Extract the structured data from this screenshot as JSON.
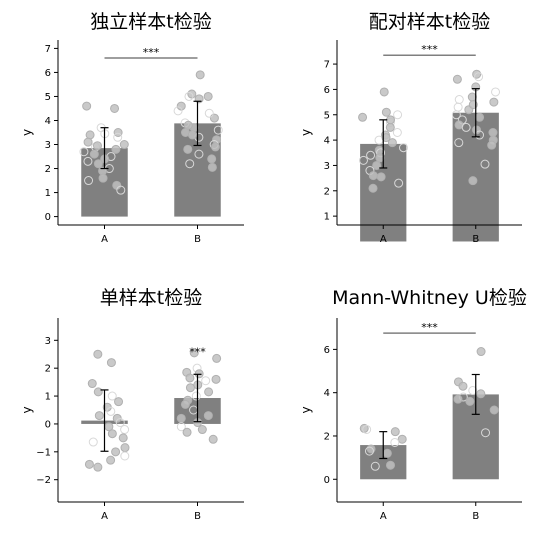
{
  "chart_data": [
    {
      "type": "bar",
      "title": "独立样本t检验",
      "xlabel": "",
      "ylabel": "y",
      "categories": [
        "A",
        "B"
      ],
      "values": [
        2.85,
        3.88
      ],
      "errors": [
        0.85,
        0.92
      ],
      "ylim": [
        -0.35,
        7.35
      ],
      "yticks": [
        0,
        1,
        2,
        3,
        4,
        5,
        6,
        7
      ],
      "significance": {
        "text": "***",
        "from": "A",
        "to": "B",
        "y": 6.6
      },
      "grid": false,
      "points": {
        "A": [
          {
            "y": 4.5,
            "filled": true
          },
          {
            "y": 4.6,
            "filled": true
          },
          {
            "y": 3.7,
            "filled": false
          },
          {
            "y": 3.5,
            "filled": true
          },
          {
            "y": 3.4,
            "filled": true
          },
          {
            "y": 3.3,
            "filled": false
          },
          {
            "y": 3.1,
            "filled": true
          },
          {
            "y": 3.0,
            "filled": true
          },
          {
            "y": 2.9,
            "filled": false
          },
          {
            "y": 2.8,
            "filled": true
          },
          {
            "y": 2.7,
            "filled": false
          },
          {
            "y": 2.6,
            "filled": true
          },
          {
            "y": 2.5,
            "filled": false
          },
          {
            "y": 2.4,
            "filled": true
          },
          {
            "y": 2.3,
            "filled": false
          },
          {
            "y": 2.2,
            "filled": true
          },
          {
            "y": 2.0,
            "filled": false
          },
          {
            "y": 1.9,
            "filled": true
          },
          {
            "y": 1.6,
            "filled": true
          },
          {
            "y": 1.5,
            "filled": false
          },
          {
            "y": 1.3,
            "filled": true
          },
          {
            "y": 1.1,
            "filled": false
          },
          {
            "y": 2.95,
            "filled": true
          },
          {
            "y": 3.45,
            "filled": false
          }
        ],
        "B": [
          {
            "y": 5.9,
            "filled": true
          },
          {
            "y": 5.1,
            "filled": true
          },
          {
            "y": 5.0,
            "filled": false
          },
          {
            "y": 4.9,
            "filled": true
          },
          {
            "y": 4.6,
            "filled": true
          },
          {
            "y": 4.4,
            "filled": false
          },
          {
            "y": 4.1,
            "filled": true
          },
          {
            "y": 3.9,
            "filled": false
          },
          {
            "y": 3.7,
            "filled": true
          },
          {
            "y": 3.6,
            "filled": false
          },
          {
            "y": 3.5,
            "filled": true
          },
          {
            "y": 3.3,
            "filled": false
          },
          {
            "y": 3.2,
            "filled": true
          },
          {
            "y": 3.0,
            "filled": false
          },
          {
            "y": 2.8,
            "filled": true
          },
          {
            "y": 2.6,
            "filled": false
          },
          {
            "y": 2.4,
            "filled": true
          },
          {
            "y": 2.2,
            "filled": false
          },
          {
            "y": 2.05,
            "filled": true
          },
          {
            "y": 3.8,
            "filled": true
          },
          {
            "y": 4.3,
            "filled": false
          },
          {
            "y": 3.4,
            "filled": true
          },
          {
            "y": 5.0,
            "filled": true
          },
          {
            "y": 2.9,
            "filled": true
          }
        ]
      }
    },
    {
      "type": "bar",
      "title": "配对样本t检验",
      "xlabel": "",
      "ylabel": "y",
      "categories": [
        "A",
        "B"
      ],
      "values": [
        3.85,
        5.08
      ],
      "errors": [
        0.95,
        0.95
      ],
      "ylim": [
        0.65,
        7.95
      ],
      "yticks": [
        1,
        2,
        3,
        4,
        5,
        6,
        7
      ],
      "significance": {
        "text": "***",
        "from": "A",
        "to": "B",
        "y": 7.35
      },
      "grid": false,
      "points": {
        "A": [
          {
            "y": 5.9,
            "filled": true
          },
          {
            "y": 5.1,
            "filled": true
          },
          {
            "y": 5.0,
            "filled": false
          },
          {
            "y": 4.9,
            "filled": true
          },
          {
            "y": 4.7,
            "filled": false
          },
          {
            "y": 4.5,
            "filled": true
          },
          {
            "y": 4.3,
            "filled": false
          },
          {
            "y": 4.2,
            "filled": true
          },
          {
            "y": 4.0,
            "filled": false
          },
          {
            "y": 3.9,
            "filled": true
          },
          {
            "y": 3.7,
            "filled": false
          },
          {
            "y": 3.6,
            "filled": true
          },
          {
            "y": 3.5,
            "filled": false
          },
          {
            "y": 3.3,
            "filled": true
          },
          {
            "y": 3.2,
            "filled": false
          },
          {
            "y": 3.0,
            "filled": true
          },
          {
            "y": 2.8,
            "filled": false
          },
          {
            "y": 2.55,
            "filled": true
          },
          {
            "y": 2.3,
            "filled": false
          },
          {
            "y": 2.1,
            "filled": true
          },
          {
            "y": 4.1,
            "filled": true
          },
          {
            "y": 3.4,
            "filled": false
          },
          {
            "y": 4.8,
            "filled": true
          },
          {
            "y": 2.6,
            "filled": true
          }
        ],
        "B": [
          {
            "y": 6.6,
            "filled": true
          },
          {
            "y": 6.5,
            "filled": false
          },
          {
            "y": 6.4,
            "filled": true
          },
          {
            "y": 6.1,
            "filled": true
          },
          {
            "y": 5.9,
            "filled": false
          },
          {
            "y": 5.7,
            "filled": true
          },
          {
            "y": 5.5,
            "filled": true
          },
          {
            "y": 5.3,
            "filled": false
          },
          {
            "y": 5.2,
            "filled": true
          },
          {
            "y": 5.0,
            "filled": false
          },
          {
            "y": 4.9,
            "filled": true
          },
          {
            "y": 4.8,
            "filled": false
          },
          {
            "y": 4.6,
            "filled": true
          },
          {
            "y": 4.5,
            "filled": false
          },
          {
            "y": 4.4,
            "filled": true
          },
          {
            "y": 4.3,
            "filled": true
          },
          {
            "y": 4.2,
            "filled": false
          },
          {
            "y": 4.0,
            "filled": true
          },
          {
            "y": 3.9,
            "filled": false
          },
          {
            "y": 3.8,
            "filled": true
          },
          {
            "y": 3.05,
            "filled": false
          },
          {
            "y": 2.4,
            "filled": true
          },
          {
            "y": 5.4,
            "filled": true
          },
          {
            "y": 5.6,
            "filled": false
          }
        ]
      }
    },
    {
      "type": "bar",
      "title": "单样本t检验",
      "xlabel": "",
      "ylabel": "y",
      "categories": [
        "A",
        "B"
      ],
      "values": [
        0.12,
        0.93
      ],
      "errors": [
        1.1,
        0.85
      ],
      "ylim": [
        -2.8,
        3.8
      ],
      "yticks": [
        -2,
        -1,
        0,
        1,
        2,
        3
      ],
      "significance": {
        "text": "***",
        "at": "B",
        "y": 2.6
      },
      "grid": false,
      "points": {
        "A": [
          {
            "y": 2.5,
            "filled": true
          },
          {
            "y": 2.2,
            "filled": true
          },
          {
            "y": 1.45,
            "filled": true
          },
          {
            "y": 1.15,
            "filled": true
          },
          {
            "y": 1.0,
            "filled": false
          },
          {
            "y": 0.8,
            "filled": true
          },
          {
            "y": 0.6,
            "filled": true
          },
          {
            "y": 0.45,
            "filled": false
          },
          {
            "y": 0.3,
            "filled": true
          },
          {
            "y": 0.2,
            "filled": true
          },
          {
            "y": 0.05,
            "filled": false
          },
          {
            "y": -0.1,
            "filled": true
          },
          {
            "y": -0.2,
            "filled": false
          },
          {
            "y": -0.35,
            "filled": true
          },
          {
            "y": -0.5,
            "filled": true
          },
          {
            "y": -0.65,
            "filled": false
          },
          {
            "y": -0.85,
            "filled": true
          },
          {
            "y": -1.0,
            "filled": true
          },
          {
            "y": -1.15,
            "filled": false
          },
          {
            "y": -1.3,
            "filled": true
          },
          {
            "y": -1.45,
            "filled": true
          },
          {
            "y": -1.55,
            "filled": true
          }
        ],
        "B": [
          {
            "y": 2.55,
            "filled": true
          },
          {
            "y": 2.35,
            "filled": true
          },
          {
            "y": 2.0,
            "filled": false
          },
          {
            "y": 1.85,
            "filled": true
          },
          {
            "y": 1.8,
            "filled": true
          },
          {
            "y": 1.65,
            "filled": true
          },
          {
            "y": 1.55,
            "filled": false
          },
          {
            "y": 1.4,
            "filled": true
          },
          {
            "y": 1.3,
            "filled": true
          },
          {
            "y": 1.15,
            "filled": true
          },
          {
            "y": 1.0,
            "filled": false
          },
          {
            "y": 0.85,
            "filled": true
          },
          {
            "y": 0.7,
            "filled": true
          },
          {
            "y": 0.5,
            "filled": false
          },
          {
            "y": 0.3,
            "filled": true
          },
          {
            "y": 0.2,
            "filled": true
          },
          {
            "y": 0.05,
            "filled": true
          },
          {
            "y": -0.1,
            "filled": false
          },
          {
            "y": -0.2,
            "filled": true
          },
          {
            "y": -0.3,
            "filled": true
          },
          {
            "y": -0.55,
            "filled": true
          },
          {
            "y": 1.6,
            "filled": true
          }
        ]
      }
    },
    {
      "type": "bar",
      "title": "Mann-Whitney U检验",
      "xlabel": "",
      "ylabel": "y",
      "categories": [
        "A",
        "B"
      ],
      "values": [
        1.58,
        3.92
      ],
      "errors": [
        0.62,
        0.92
      ],
      "ylim": [
        -1.05,
        7.45
      ],
      "yticks": [
        0,
        2,
        4,
        6
      ],
      "significance": {
        "text": "***",
        "from": "A",
        "to": "B",
        "y": 6.75
      },
      "grid": false,
      "points": {
        "A": [
          {
            "y": 2.35,
            "filled": true
          },
          {
            "y": 2.3,
            "filled": false
          },
          {
            "y": 2.2,
            "filled": true
          },
          {
            "y": 1.85,
            "filled": true
          },
          {
            "y": 1.7,
            "filled": false
          },
          {
            "y": 1.4,
            "filled": true
          },
          {
            "y": 1.3,
            "filled": false
          },
          {
            "y": 1.2,
            "filled": true
          },
          {
            "y": 0.65,
            "filled": true
          },
          {
            "y": 0.6,
            "filled": false
          }
        ],
        "B": [
          {
            "y": 5.9,
            "filled": true
          },
          {
            "y": 4.5,
            "filled": true
          },
          {
            "y": 4.3,
            "filled": true
          },
          {
            "y": 4.1,
            "filled": false
          },
          {
            "y": 3.95,
            "filled": true
          },
          {
            "y": 3.8,
            "filled": false
          },
          {
            "y": 3.7,
            "filled": true
          },
          {
            "y": 3.2,
            "filled": true
          },
          {
            "y": 2.15,
            "filled": false
          },
          {
            "y": 3.6,
            "filled": true
          }
        ]
      }
    }
  ],
  "colors": {
    "bar": "#808080",
    "point_fill": "#c0c0c0",
    "point_stroke": "#b0b0b0",
    "sig_line": "#7f7f7f",
    "error": "#000000",
    "axis": "#000000"
  }
}
